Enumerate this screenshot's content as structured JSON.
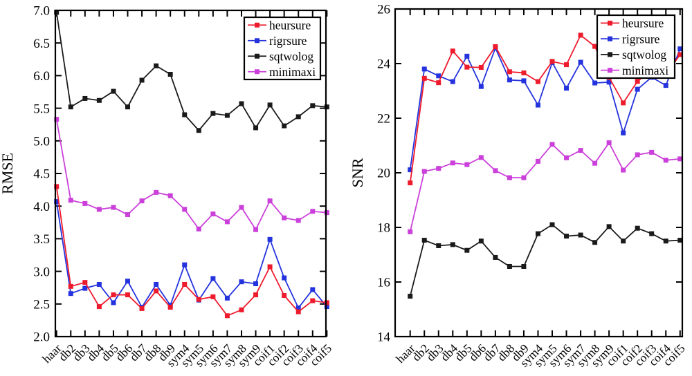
{
  "figure": {
    "background": "#ffffff",
    "axis_color": "#000000",
    "text_color": "#000000"
  },
  "chart_data": [
    {
      "type": "line",
      "title": "",
      "xlabel": "",
      "ylabel": "RMSE",
      "ylim": [
        2.0,
        7.0
      ],
      "ytick_values": [
        2.0,
        2.5,
        3.0,
        3.5,
        4.0,
        4.5,
        5.0,
        5.5,
        6.0,
        6.5,
        7.0
      ],
      "ytick_labels": [
        "2.0",
        "2.5",
        "3.0",
        "3.5",
        "4.0",
        "4.5",
        "5.0",
        "5.5",
        "6.0",
        "6.5",
        "7.0"
      ],
      "grid": false,
      "legend_position": "top-right",
      "categories": [
        "haar",
        "db2",
        "db3",
        "db4",
        "db5",
        "db6",
        "db7",
        "db8",
        "db9",
        "sym4",
        "sym5",
        "sym6",
        "sym7",
        "sym8",
        "sym9",
        "coif1",
        "coif2",
        "coif3",
        "coif4",
        "coif5"
      ],
      "series": [
        {
          "name": "heursure",
          "color": "#ee1b2d",
          "marker": "square",
          "values": [
            4.3,
            2.77,
            2.83,
            2.46,
            2.64,
            2.64,
            2.43,
            2.7,
            2.45,
            2.8,
            2.57,
            2.61,
            2.32,
            2.41,
            2.64,
            3.07,
            2.63,
            2.38,
            2.55,
            2.52
          ]
        },
        {
          "name": "rigrsure",
          "color": "#2433dd",
          "marker": "square",
          "values": [
            4.07,
            2.66,
            2.74,
            2.8,
            2.52,
            2.85,
            2.45,
            2.8,
            2.48,
            3.1,
            2.56,
            2.89,
            2.59,
            2.84,
            2.81,
            3.49,
            2.9,
            2.44,
            2.72,
            2.46
          ]
        },
        {
          "name": "sqtwolog",
          "color": "#1a1a1a",
          "marker": "square",
          "values": [
            6.97,
            5.52,
            5.65,
            5.62,
            5.76,
            5.52,
            5.93,
            6.15,
            6.02,
            5.4,
            5.16,
            5.42,
            5.39,
            5.57,
            5.2,
            5.55,
            5.23,
            5.37,
            5.54,
            5.52
          ]
        },
        {
          "name": "minimaxi",
          "color": "#cb40da",
          "marker": "square",
          "values": [
            5.33,
            4.09,
            4.04,
            3.95,
            3.98,
            3.87,
            4.08,
            4.21,
            4.16,
            3.95,
            3.65,
            3.88,
            3.76,
            3.98,
            3.64,
            4.08,
            3.82,
            3.78,
            3.92,
            3.9
          ]
        }
      ]
    },
    {
      "type": "line",
      "title": "",
      "xlabel": "",
      "ylabel": "SNR",
      "ylim": [
        14,
        26
      ],
      "ytick_values": [
        14,
        16,
        18,
        20,
        22,
        24,
        26
      ],
      "ytick_labels": [
        "14",
        "16",
        "18",
        "20",
        "22",
        "24",
        "26"
      ],
      "grid": false,
      "legend_position": "top-right",
      "categories": [
        "haar",
        "db2",
        "db3",
        "db4",
        "db5",
        "db6",
        "db7",
        "db8",
        "db9",
        "sym4",
        "sym5",
        "sym6",
        "sym7",
        "sym8",
        "sym9",
        "coif1",
        "coif2",
        "coif3",
        "coif4",
        "coif5"
      ],
      "series": [
        {
          "name": "heursure",
          "color": "#ee1b2d",
          "marker": "square",
          "values": [
            19.63,
            23.46,
            23.3,
            24.46,
            23.87,
            23.86,
            24.62,
            23.7,
            23.66,
            23.34,
            24.08,
            23.96,
            25.04,
            24.63,
            23.5,
            22.56,
            23.35,
            23.75,
            23.6,
            24.33
          ]
        },
        {
          "name": "rigrsure",
          "color": "#2433dd",
          "marker": "square",
          "values": [
            20.11,
            23.8,
            23.55,
            23.34,
            24.27,
            23.16,
            24.57,
            23.4,
            23.37,
            22.48,
            24.04,
            23.1,
            24.05,
            23.29,
            23.32,
            21.46,
            23.06,
            23.5,
            23.2,
            24.54
          ]
        },
        {
          "name": "sqtwolog",
          "color": "#1a1a1a",
          "marker": "square",
          "values": [
            15.48,
            17.53,
            17.33,
            17.37,
            17.16,
            17.5,
            16.9,
            16.57,
            16.57,
            17.77,
            18.1,
            17.68,
            17.72,
            17.45,
            18.03,
            17.5,
            17.97,
            17.77,
            17.5,
            17.53
          ]
        },
        {
          "name": "minimaxi",
          "color": "#cb40da",
          "marker": "square",
          "values": [
            17.84,
            20.05,
            20.16,
            20.36,
            20.3,
            20.56,
            20.08,
            19.82,
            19.82,
            20.42,
            21.04,
            20.55,
            20.82,
            20.35,
            21.1,
            20.1,
            20.66,
            20.75,
            20.46,
            20.51
          ]
        }
      ]
    }
  ]
}
